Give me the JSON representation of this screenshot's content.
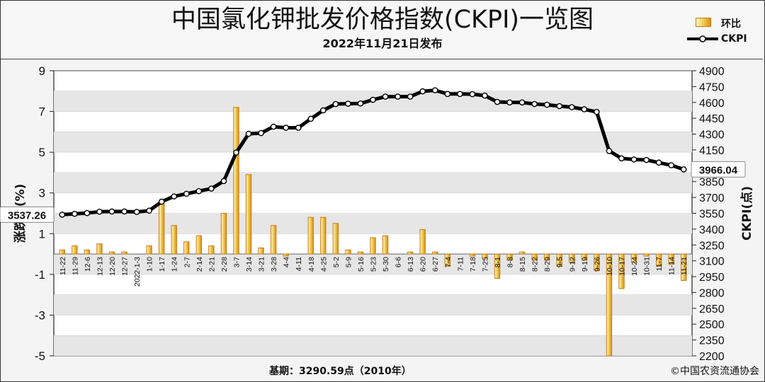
{
  "title": "中国氯化钾批发价格指数(CKPI)一览图",
  "subtitle": "2022年11月21日发布",
  "legend": {
    "bar_label": "环比",
    "line_label": "CKPI"
  },
  "footer": {
    "base": "基期：3290.59点（2010年）",
    "copyright": "©中国农资流通协会"
  },
  "colors": {
    "bar_fill": "#f0c84a",
    "bar_edge": "#c97a16",
    "line": "#000000",
    "marker_fill": "#ffffff"
  },
  "chart_data": {
    "type": "bar+line",
    "categories": [
      "11-22",
      "11-29",
      "12-6",
      "12-13",
      "12-20",
      "12-27",
      "2022-1-3",
      "1-10",
      "1-17",
      "1-24",
      "2-7",
      "2-14",
      "2-21",
      "2-28",
      "3-7",
      "3-14",
      "3-21",
      "3-28",
      "4-4",
      "4-11",
      "4-18",
      "4-25",
      "5-2",
      "5-9",
      "5-16",
      "5-23",
      "5-30",
      "6-6",
      "6-13",
      "6-20",
      "6-27",
      "7-4",
      "7-11",
      "7-18",
      "7-25",
      "8-1",
      "8-8",
      "8-15",
      "8-22",
      "8-29",
      "9-5",
      "9-12",
      "9-19",
      "9-26",
      "10-10",
      "10-17",
      "10-24",
      "10-31",
      "11-7",
      "11-14",
      "11-21"
    ],
    "series": [
      {
        "name": "环比",
        "axis": "left",
        "unit": "%",
        "values": [
          0.2,
          0.4,
          0.2,
          0.5,
          0.1,
          0.1,
          0.0,
          0.4,
          2.6,
          1.4,
          0.6,
          0.9,
          0.4,
          2.0,
          7.2,
          3.9,
          0.3,
          1.4,
          -0.1,
          0.0,
          1.8,
          1.8,
          1.5,
          0.2,
          0.1,
          0.8,
          0.9,
          0.0,
          0.1,
          1.2,
          0.1,
          -0.6,
          0.0,
          -0.1,
          -0.2,
          -1.2,
          -0.3,
          0.1,
          -0.3,
          -0.3,
          -0.6,
          -0.4,
          -0.3,
          -0.8,
          -5.0,
          -1.7,
          -0.4,
          -0.1,
          -0.6,
          -0.5,
          -1.3
        ]
      },
      {
        "name": "CKPI",
        "axis": "right",
        "values": [
          3537.26,
          3545,
          3552,
          3565,
          3567,
          3567,
          3563,
          3575,
          3660,
          3710,
          3735,
          3760,
          3784,
          3855,
          4125,
          4303,
          4310,
          4370,
          4360,
          4360,
          4445,
          4525,
          4585,
          4588,
          4590,
          4625,
          4655,
          4655,
          4655,
          4705,
          4715,
          4680,
          4680,
          4678,
          4665,
          4605,
          4600,
          4600,
          4585,
          4578,
          4565,
          4555,
          4535,
          4510,
          4140,
          4070,
          4060,
          4055,
          4030,
          4005,
          3966.04
        ]
      }
    ],
    "y_left": {
      "label": "涨跌幅(%)",
      "min": -5,
      "max": 9,
      "ticks": [
        9,
        7,
        5,
        3,
        1,
        -1,
        -3,
        -5
      ]
    },
    "y_right": {
      "label": "CKPI(点)",
      "min": 2200,
      "max": 4900,
      "ticks": [
        4900,
        4750,
        4600,
        4450,
        4300,
        4150,
        4000,
        3850,
        3700,
        3550,
        3400,
        3250,
        3100,
        2950,
        2800,
        2650,
        2500,
        2350,
        2200
      ]
    },
    "annotations": {
      "first_value": "3537.26",
      "last_value": "3966.04"
    },
    "grid": "horizontal bands"
  }
}
